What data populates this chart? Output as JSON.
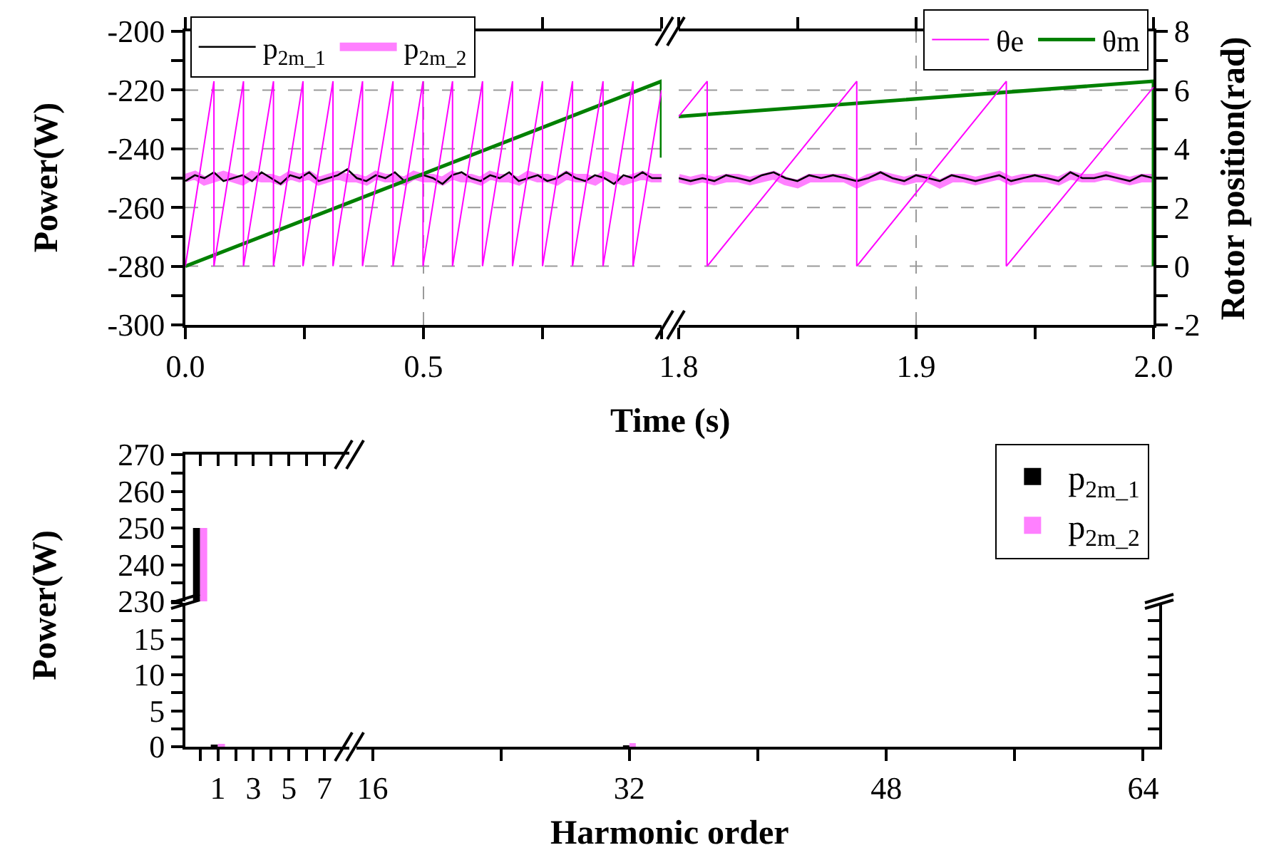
{
  "chart_data": [
    {
      "type": "line",
      "ylabel": "Power(W)",
      "xlim": [
        0,
        1.0
      ],
      "ylim": [
        -300,
        -200
      ],
      "y2lim": [
        -2,
        8
      ],
      "xticks": [
        {
          "value": 0,
          "label": "0.0"
        },
        {
          "value": 0.25,
          "label": null
        },
        0.5,
        {
          "value": 0.75,
          "label": null
        },
        {
          "value": 1.0,
          "label": null
        }
      ],
      "yticks": [
        -300,
        {
          "value": -290,
          "label": null
        },
        -280,
        {
          "value": -270,
          "label": null
        },
        -260,
        {
          "value": -250,
          "label": null
        },
        -240,
        {
          "value": -230,
          "label": null
        },
        -220,
        {
          "value": -210,
          "label": null
        },
        -200
      ],
      "grid": true,
      "legend": "top left",
      "x": [
        0,
        0.02,
        0.04,
        0.06,
        0.08,
        0.1,
        0.12,
        0.14,
        0.16,
        0.18,
        0.2,
        0.22,
        0.24,
        0.26,
        0.28,
        0.3,
        0.32,
        0.34,
        0.36,
        0.38,
        0.4,
        0.42,
        0.44,
        0.46,
        0.48,
        0.5,
        0.52,
        0.54,
        0.56,
        0.58,
        0.6,
        0.62,
        0.64,
        0.66,
        0.68,
        0.7,
        0.72,
        0.74,
        0.76,
        0.78,
        0.8,
        0.82,
        0.84,
        0.86,
        0.88,
        0.9,
        0.92,
        0.94,
        0.96,
        0.98,
        1.0
      ],
      "series": [
        {
          "name": "p$_{2m_1}$",
          "color": "#000000",
          "values": [
            -251,
            -249,
            -250,
            -248,
            -251,
            -250,
            -249,
            -251,
            -248,
            -250,
            -252,
            -249,
            -250,
            -248,
            -251,
            -250,
            -249,
            -247,
            -250,
            -251,
            -249,
            -250,
            -248,
            -251,
            -250,
            -249,
            -250,
            -252,
            -249,
            -248,
            -250,
            -251,
            -249,
            -250,
            -248,
            -251,
            -250,
            -249,
            -251,
            -250,
            -248,
            -250,
            -251,
            -249,
            -250,
            -252,
            -249,
            -250,
            -248,
            -250,
            -250
          ]
        },
        {
          "name": "p$_{2m_2}$",
          "color": "#ff80ff",
          "values": [
            -250,
            -249,
            -251,
            -250,
            -249,
            -250,
            -251,
            -249,
            -250,
            -250,
            -251,
            -249,
            -250,
            -249,
            -251,
            -250,
            -249,
            -250,
            -250,
            -251,
            -249,
            -250,
            -250,
            -251,
            -249,
            -250,
            -250,
            -251,
            -249,
            -250,
            -250,
            -251,
            -249,
            -250,
            -250,
            -251,
            -249,
            -250,
            -250,
            -251,
            -249,
            -250,
            -250,
            -251,
            -249,
            -250,
            -251,
            -250,
            -249,
            -250,
            -250
          ]
        },
        {
          "color": "#ff00ff",
          "axis": "y2",
          "x": [
            0,
            0.06,
            0.06,
            0.122,
            0.122,
            0.185,
            0.185,
            0.247,
            0.247,
            0.31,
            0.31,
            0.372,
            0.372,
            0.436,
            0.436,
            0.499,
            0.499,
            0.561,
            0.561,
            0.624,
            0.624,
            0.687,
            0.687,
            0.75,
            0.75,
            0.813,
            0.813,
            0.877,
            0.877,
            0.94,
            0.94,
            1.0
          ],
          "values": [
            0,
            6.3,
            0,
            6.3,
            0,
            6.3,
            0,
            6.3,
            0,
            6.3,
            0,
            6.3,
            0,
            6.3,
            0,
            6.3,
            0,
            6.3,
            0,
            6.3,
            0,
            6.3,
            0,
            6.3,
            0,
            6.3,
            0,
            6.3,
            0,
            6.3,
            0,
            6.0
          ]
        },
        {
          "color": "#008000",
          "axis": "y2",
          "x": [
            0,
            1.0,
            1.0
          ],
          "values": [
            0,
            6.3,
            3.7
          ]
        }
      ]
    },
    {
      "type": "line",
      "xlabel": "Time (s)",
      "y2label": "Rotor position(rad)",
      "xlim": [
        1.8,
        2.0
      ],
      "ylim": [
        -300,
        -200
      ],
      "y2lim": [
        -2,
        8
      ],
      "xticks": [
        1.8,
        {
          "value": 1.85,
          "label": null
        },
        1.9,
        {
          "value": 1.95,
          "label": null
        },
        {
          "value": 2.0,
          "label": "2.0"
        }
      ],
      "y2ticks": [
        -2,
        {
          "value": -1,
          "label": null
        },
        0,
        {
          "value": 1,
          "label": null
        },
        2,
        {
          "value": 3,
          "label": null
        },
        4,
        {
          "value": 5,
          "label": null
        },
        6,
        {
          "value": 7,
          "label": null
        },
        8
      ],
      "grid": true,
      "legend": "top right",
      "x": [
        1.8,
        1.805,
        1.81,
        1.815,
        1.82,
        1.825,
        1.83,
        1.835,
        1.84,
        1.845,
        1.85,
        1.855,
        1.86,
        1.865,
        1.87,
        1.875,
        1.88,
        1.885,
        1.89,
        1.895,
        1.9,
        1.905,
        1.91,
        1.915,
        1.92,
        1.925,
        1.93,
        1.935,
        1.94,
        1.945,
        1.95,
        1.955,
        1.96,
        1.965,
        1.97,
        1.975,
        1.98,
        1.985,
        1.99,
        1.995,
        2.0
      ],
      "series": [
        {
          "color": "#000000",
          "values": [
            -250,
            -251,
            -250,
            -251,
            -249,
            -250,
            -251,
            -249,
            -248,
            -250,
            -251,
            -249,
            -250,
            -249,
            -250,
            -251,
            -250,
            -248,
            -250,
            -251,
            -249,
            -250,
            -251,
            -249,
            -250,
            -251,
            -250,
            -249,
            -251,
            -250,
            -249,
            -250,
            -251,
            -248,
            -250,
            -250,
            -249,
            -250,
            -251,
            -249,
            -250
          ]
        },
        {
          "color": "#ff80ff",
          "values": [
            -250,
            -251,
            -250,
            -251,
            -250,
            -250,
            -251,
            -250,
            -249,
            -251,
            -252,
            -250,
            -250,
            -250,
            -250,
            -252,
            -250,
            -249,
            -250,
            -251,
            -250,
            -250,
            -252,
            -250,
            -250,
            -251,
            -250,
            -249,
            -251,
            -250,
            -250,
            -250,
            -251,
            -249,
            -250,
            -250,
            -249,
            -250,
            -251,
            -250,
            -250
          ]
        },
        {
          "name": "θe",
          "color": "#ff00ff",
          "axis": "y2",
          "x": [
            1.8,
            1.812,
            1.812,
            1.875,
            1.875,
            1.938,
            1.938,
            2.0
          ],
          "values": [
            5.1,
            6.3,
            0,
            6.3,
            0,
            6.3,
            0,
            6.1
          ]
        },
        {
          "name": "θm",
          "color": "#008000",
          "axis": "y2",
          "x": [
            1.8,
            2.0,
            2.0
          ],
          "values": [
            5.1,
            6.3,
            0
          ]
        }
      ]
    },
    {
      "type": "bar",
      "xlim": [
        -0.83,
        8.4
      ],
      "ylim": [
        230,
        270
      ],
      "tick_labels": "y",
      "legend": "top right",
      "xticks": [
        {
          "value": 0,
          "label": null
        },
        {
          "value": 1,
          "label": null
        },
        {
          "value": 2,
          "label": null
        },
        {
          "value": 3,
          "label": null
        },
        {
          "value": 4,
          "label": null
        },
        {
          "value": 5,
          "label": null
        },
        {
          "value": 6,
          "label": null
        },
        {
          "value": 7,
          "label": null
        }
      ],
      "yticks": [
        230,
        {
          "value": 235,
          "label": null
        },
        240,
        {
          "value": 245,
          "label": null
        },
        250,
        {
          "value": 255,
          "label": null
        },
        260,
        {
          "value": 265,
          "label": null
        },
        270
      ],
      "x": [
        0
      ],
      "series": [
        {
          "name": "p$_{2m_1}$",
          "color": "#000000",
          "values": [
            250
          ]
        },
        {
          "name": "p$_{2m_2}$",
          "color": "#ff80ff",
          "values": [
            250
          ]
        }
      ]
    },
    {
      "type": "bar",
      "ylabel": "Power(W)",
      "xlim": [
        -0.83,
        8.4
      ],
      "ylim": [
        0,
        20
      ],
      "xticks": [
        {
          "value": 0,
          "label": null
        },
        1,
        {
          "value": 2,
          "label": null
        },
        3,
        {
          "value": 4,
          "label": null
        },
        5,
        {
          "value": 6,
          "label": null
        },
        7
      ],
      "yticks": [
        0,
        {
          "value": 2.5,
          "label": null
        },
        5,
        {
          "value": 7.5,
          "label": null
        },
        10,
        {
          "value": 12.5,
          "label": null
        },
        15,
        {
          "value": 17.5,
          "label": null
        },
        {
          "value": 20,
          "label": null
        }
      ],
      "x": [
        1
      ],
      "series": [
        {
          "color": "#000000",
          "values": [
            0.3
          ]
        },
        {
          "color": "#ff80ff",
          "values": [
            0.4
          ]
        }
      ]
    },
    {
      "type": "bar",
      "xlabel": "Harmonic order",
      "xlim": [
        15,
        65
      ],
      "ylim": [
        0,
        20
      ],
      "tick_labels": "x",
      "xticks": [
        16,
        {
          "value": 24,
          "label": null
        },
        32,
        {
          "value": 40,
          "label": null
        },
        48,
        {
          "value": 56,
          "label": null
        },
        64
      ],
      "yticks": [
        {
          "value": 0,
          "label": null
        },
        {
          "value": 2.5,
          "label": null
        },
        {
          "value": 5,
          "label": null
        },
        {
          "value": 7.5,
          "label": null
        },
        {
          "value": 10,
          "label": null
        },
        {
          "value": 12.5,
          "label": null
        },
        {
          "value": 15,
          "label": null
        },
        {
          "value": 17.5,
          "label": null
        }
      ],
      "x": [
        32
      ],
      "series": [
        {
          "color": "#000000",
          "values": [
            0.2
          ]
        },
        {
          "color": "#ff80ff",
          "values": [
            0.5
          ]
        }
      ]
    }
  ]
}
